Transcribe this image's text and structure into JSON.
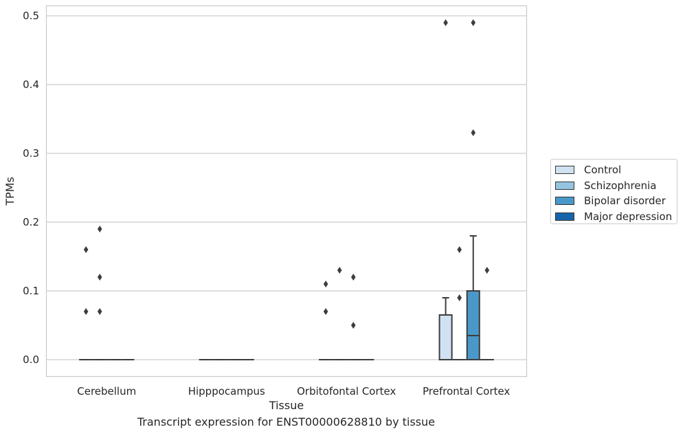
{
  "chart_data": {
    "type": "box",
    "caption": "Transcript expression for ENST00000628810 by tissue",
    "xlabel": "Tissue",
    "ylabel": "TPMs",
    "ylim": [
      -0.024,
      0.515
    ],
    "yticks": [
      "0.0",
      "0.1",
      "0.2",
      "0.3",
      "0.4",
      "0.5"
    ],
    "ytick_values": [
      0,
      0.1,
      0.2,
      0.3,
      0.4,
      0.5
    ],
    "categories": [
      "Cerebellum",
      "Hipppocampus",
      "Orbitofontal Cortex",
      "Prefrontal Cortex"
    ],
    "grid": true,
    "legend_position": "right",
    "series": [
      {
        "name": "Control",
        "color": "#d0e1f2",
        "boxes": [
          {
            "q1": 0,
            "median": 0,
            "q3": 0,
            "whisker_low": 0,
            "whisker_high": 0,
            "outliers": [
              0.07,
              0.16
            ]
          },
          {
            "q1": 0,
            "median": 0,
            "q3": 0,
            "whisker_low": 0,
            "whisker_high": 0,
            "outliers": []
          },
          {
            "q1": 0,
            "median": 0,
            "q3": 0,
            "whisker_low": 0,
            "whisker_high": 0,
            "outliers": [
              0.07,
              0.11
            ]
          },
          {
            "q1": 0,
            "median": 0,
            "q3": 0.065,
            "whisker_low": 0,
            "whisker_high": 0.09,
            "outliers": [
              0.49
            ]
          }
        ]
      },
      {
        "name": "Schizophrenia",
        "color": "#94c4df",
        "boxes": [
          {
            "q1": 0,
            "median": 0,
            "q3": 0,
            "whisker_low": 0,
            "whisker_high": 0,
            "outliers": [
              0.07,
              0.12,
              0.19
            ]
          },
          {
            "q1": 0,
            "median": 0,
            "q3": 0,
            "whisker_low": 0,
            "whisker_high": 0,
            "outliers": []
          },
          {
            "q1": 0,
            "median": 0,
            "q3": 0,
            "whisker_low": 0,
            "whisker_high": 0,
            "outliers": [
              0.13
            ]
          },
          {
            "q1": 0,
            "median": 0,
            "q3": 0,
            "whisker_low": 0,
            "whisker_high": 0,
            "outliers": [
              0.09,
              0.16
            ]
          }
        ]
      },
      {
        "name": "Bipolar disorder",
        "color": "#4a98c9",
        "boxes": [
          {
            "q1": 0,
            "median": 0,
            "q3": 0,
            "whisker_low": 0,
            "whisker_high": 0,
            "outliers": []
          },
          {
            "q1": 0,
            "median": 0,
            "q3": 0,
            "whisker_low": 0,
            "whisker_high": 0,
            "outliers": []
          },
          {
            "q1": 0,
            "median": 0,
            "q3": 0,
            "whisker_low": 0,
            "whisker_high": 0,
            "outliers": [
              0.05,
              0.12
            ]
          },
          {
            "q1": 0,
            "median": 0.035,
            "q3": 0.1,
            "whisker_low": 0,
            "whisker_high": 0.18,
            "outliers": [
              0.33,
              0.49
            ]
          }
        ]
      },
      {
        "name": "Major depression",
        "color": "#1764ab",
        "boxes": [
          {
            "q1": 0,
            "median": 0,
            "q3": 0,
            "whisker_low": 0,
            "whisker_high": 0,
            "outliers": []
          },
          {
            "q1": 0,
            "median": 0,
            "q3": 0,
            "whisker_low": 0,
            "whisker_high": 0,
            "outliers": []
          },
          {
            "q1": 0,
            "median": 0,
            "q3": 0,
            "whisker_low": 0,
            "whisker_high": 0,
            "outliers": []
          },
          {
            "q1": 0,
            "median": 0,
            "q3": 0,
            "whisker_low": 0,
            "whisker_high": 0,
            "outliers": [
              0.13
            ]
          }
        ]
      }
    ]
  },
  "legend": {
    "items": [
      {
        "label": "Control",
        "color": "#d0e1f2"
      },
      {
        "label": "Schizophrenia",
        "color": "#94c4df"
      },
      {
        "label": "Bipolar disorder",
        "color": "#4a98c9"
      },
      {
        "label": "Major depression",
        "color": "#1764ab"
      }
    ]
  }
}
